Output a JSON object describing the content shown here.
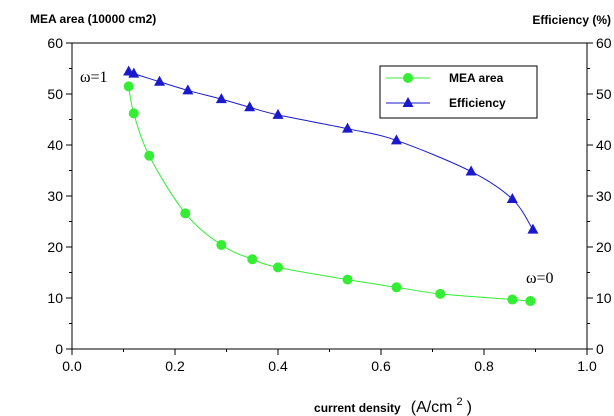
{
  "chart_data": {
    "type": "line",
    "title": "",
    "x": {
      "ticks": [
        "0.0",
        "0.2",
        "0.4",
        "0.6",
        "0.8",
        "1.0"
      ],
      "range": [
        0,
        1.0
      ]
    },
    "xlabel": {
      "text": "current density",
      "unit_base": "(A/cm",
      "unit_sup": "2",
      "unit_close": ")"
    },
    "y_left": {
      "label": "MEA area (10000 cm2)",
      "ticks": [
        "0",
        "10",
        "20",
        "30",
        "40",
        "50",
        "60"
      ],
      "range": [
        0,
        60
      ]
    },
    "y_right": {
      "label": "Efficiency  (%)",
      "ticks": [
        "0",
        "10",
        "20",
        "30",
        "40",
        "50",
        "60"
      ],
      "range": [
        0,
        60
      ]
    },
    "legend": {
      "placement": "top-right",
      "entries": [
        "MEA area",
        "Efficiency"
      ]
    },
    "annotations": {
      "left": "ω=1",
      "right": "ω=0"
    },
    "series": [
      {
        "name": "MEA area",
        "axis": "left",
        "color": "#33ee33",
        "marker": "circle",
        "points": [
          [
            0.11,
            51.5
          ],
          [
            0.12,
            46.2
          ],
          [
            0.15,
            37.9
          ],
          [
            0.22,
            26.6
          ],
          [
            0.29,
            20.4
          ],
          [
            0.35,
            17.6
          ],
          [
            0.4,
            16.0
          ],
          [
            0.535,
            13.6
          ],
          [
            0.63,
            12.1
          ],
          [
            0.715,
            10.8
          ],
          [
            0.855,
            9.7
          ],
          [
            0.89,
            9.4
          ]
        ]
      },
      {
        "name": "Efficiency",
        "axis": "right",
        "color": "#1a1acc",
        "marker": "triangle",
        "points": [
          [
            0.11,
            54.4
          ],
          [
            0.12,
            54.0
          ],
          [
            0.17,
            52.4
          ],
          [
            0.225,
            50.7
          ],
          [
            0.29,
            49.0
          ],
          [
            0.345,
            47.4
          ],
          [
            0.4,
            45.9
          ],
          [
            0.535,
            43.2
          ],
          [
            0.63,
            40.9
          ],
          [
            0.775,
            34.8
          ],
          [
            0.855,
            29.4
          ],
          [
            0.895,
            23.4
          ]
        ]
      }
    ]
  }
}
